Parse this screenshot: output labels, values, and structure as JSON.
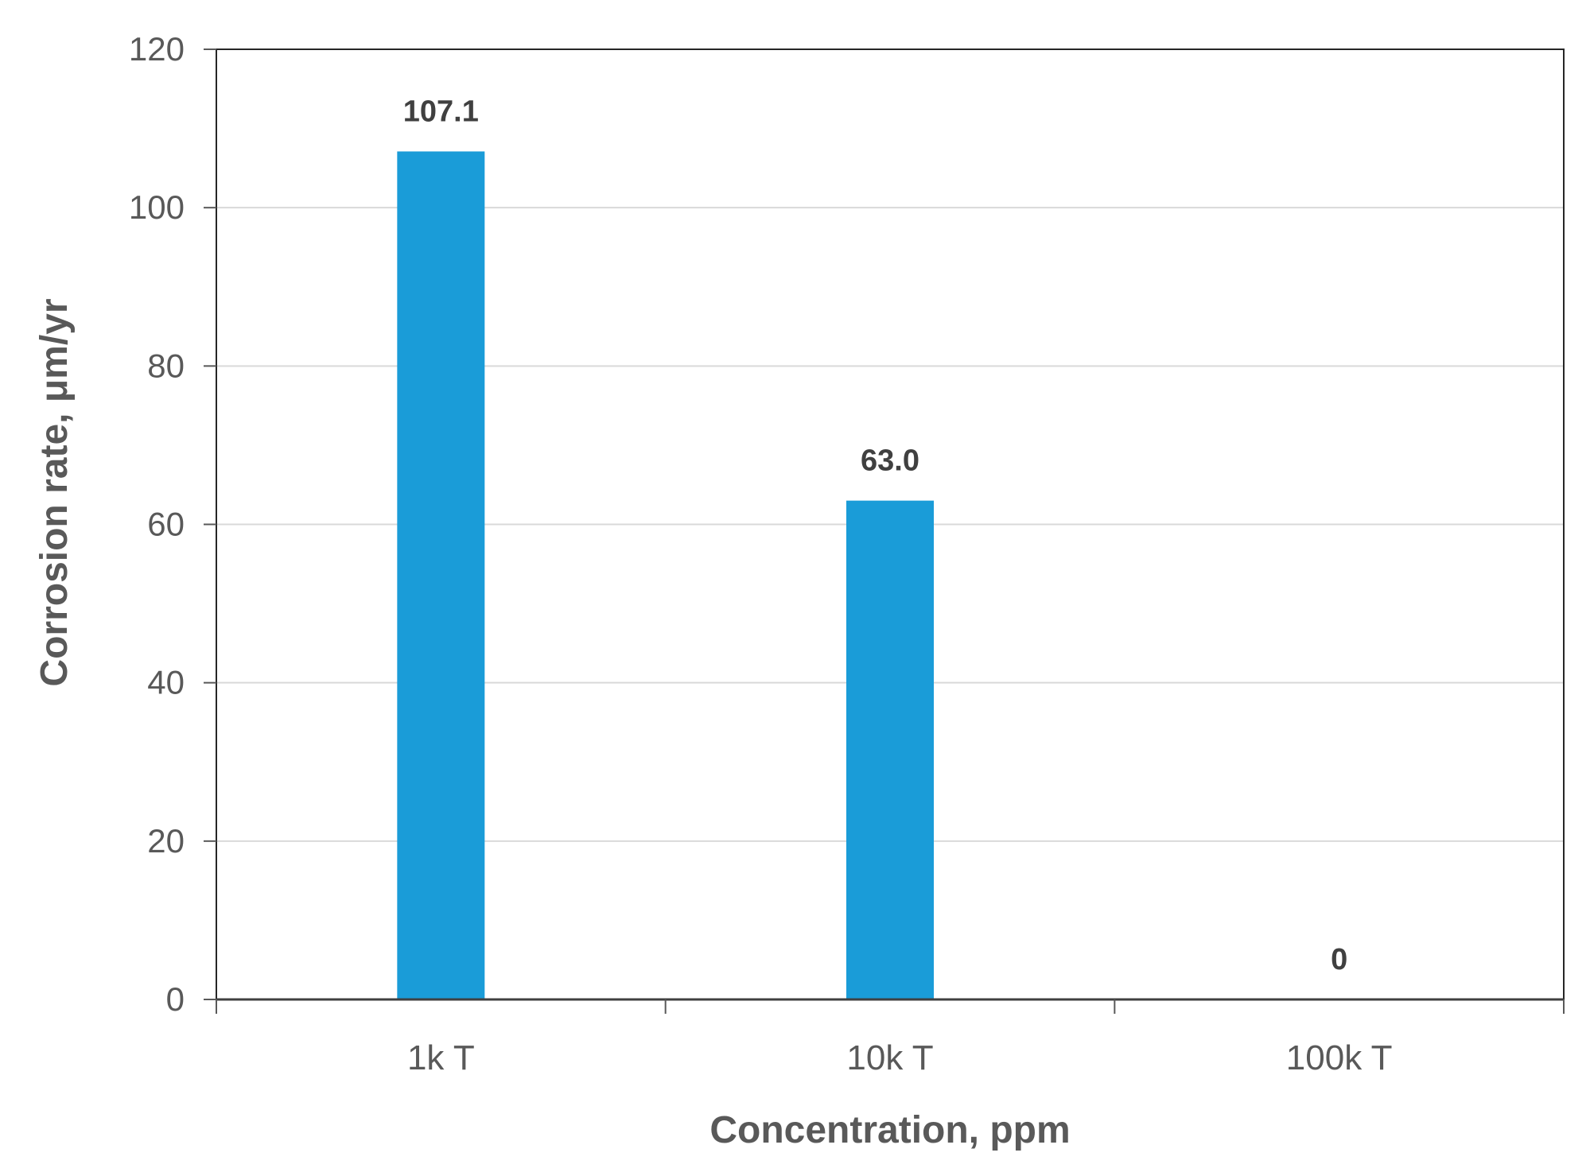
{
  "chart_data": {
    "type": "bar",
    "title": "",
    "xlabel": "Concentration, ppm",
    "ylabel": "Corrosion rate, μm/yr",
    "categories": [
      "1k T",
      "10k T",
      "100k T"
    ],
    "values": [
      107.1,
      63.0,
      0
    ],
    "data_labels": [
      "107.1",
      "63.0",
      "0"
    ],
    "ylim": [
      0,
      120
    ],
    "yticks": [
      0,
      20,
      40,
      60,
      80,
      100,
      120
    ],
    "grid": "horizontal",
    "legend": "none",
    "bar_color": "#1a9cd8",
    "gridline_color": "#d9d9d9",
    "axis_color": "#595959"
  }
}
